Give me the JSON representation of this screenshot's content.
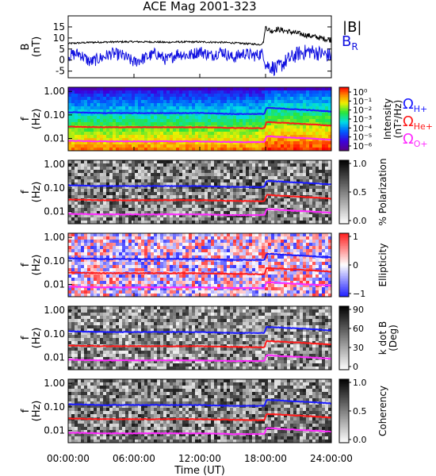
{
  "title": "ACE Mag 2001-323",
  "xaxis": {
    "ticks": [
      "00:00:00",
      "06:00:00",
      "12:00:00",
      "18:00:00",
      "24:00:00"
    ],
    "label": "Time (UT)"
  },
  "colors": {
    "btotal": "#000000",
    "br": "#1010e0",
    "h_plus": "#1a1aff",
    "he_plus": "#ff1a1a",
    "o_plus": "#ff2aff"
  },
  "chart_data": [
    {
      "type": "line",
      "panel": "magnetic-field",
      "ylabel": [
        "B",
        "(nT)"
      ],
      "yticks": [
        "15",
        "10",
        "5",
        "0",
        "-5"
      ],
      "ylim": [
        -8,
        20
      ],
      "xlim_hours": [
        0,
        24
      ],
      "legend": [
        {
          "name": "|B|",
          "color": "#000000"
        },
        {
          "name": "B",
          "sub": "R",
          "color": "#1010e0"
        }
      ],
      "series": [
        {
          "name": "|B|",
          "x": [
            0,
            2,
            4,
            6,
            8,
            9,
            10,
            12,
            14,
            15,
            16,
            17,
            17.5,
            17.8,
            18,
            18.5,
            19,
            20,
            21,
            22,
            23,
            24
          ],
          "y": [
            7.5,
            8,
            8.2,
            8.3,
            8.2,
            8.0,
            8.2,
            8.2,
            8.0,
            7.8,
            7.5,
            7.2,
            7.0,
            8,
            15,
            13,
            14,
            13,
            12,
            11,
            10,
            9
          ]
        },
        {
          "name": "B_R",
          "x": [
            0,
            1,
            2,
            3,
            4,
            5,
            6,
            7,
            8,
            9,
            10,
            11,
            12,
            13,
            14,
            15,
            16,
            17,
            17.8,
            18,
            19,
            20,
            21,
            22,
            23,
            24
          ],
          "y": [
            2,
            3,
            -1,
            1,
            3,
            2,
            -1,
            1,
            3,
            0,
            3,
            2,
            4,
            2,
            4,
            1,
            3,
            2,
            3,
            -2,
            -4,
            0,
            3,
            4,
            3,
            2
          ]
        }
      ]
    },
    {
      "type": "heatmap",
      "panel": "intensity",
      "ylabel": [
        "f",
        "(Hz)"
      ],
      "yticks": [
        "1.00",
        "0.10",
        "0.01"
      ],
      "ylim_hz": [
        0.003,
        1.5
      ],
      "colorbar": {
        "label": "Intensity",
        "label2": "(nT²/Hz)",
        "ticks": [
          "10⁰",
          "10⁻¹",
          "10⁻²",
          "10⁻³",
          "10⁻⁴",
          "10⁻⁵",
          "10⁻⁶"
        ],
        "range": [
          -6.5,
          0.5
        ]
      },
      "legend": [
        {
          "name": "Ω",
          "sub": "H+",
          "color": "#1a1aff"
        },
        {
          "name": "Ω",
          "sub": "He+",
          "color": "#ff1a1a"
        },
        {
          "name": "Ω",
          "sub": "O+",
          "color": "#ff2aff"
        }
      ]
    },
    {
      "type": "heatmap",
      "panel": "polarization",
      "ylabel": [
        "f",
        "(Hz)"
      ],
      "yticks": [
        "1.00",
        "0.10",
        "0.01"
      ],
      "colorbar": {
        "label": "% Polarization",
        "ticks": [
          "1.0",
          "0.5",
          "0.0"
        ],
        "range": [
          0,
          1
        ]
      }
    },
    {
      "type": "heatmap",
      "panel": "ellipticity",
      "ylabel": [
        "f",
        "(Hz)"
      ],
      "yticks": [
        "1.00",
        "0.10",
        "0.01"
      ],
      "colorbar": {
        "label": "Ellipticity",
        "ticks": [
          "1",
          "0",
          "−1"
        ],
        "range": [
          -1,
          1
        ]
      }
    },
    {
      "type": "heatmap",
      "panel": "k-dot-b",
      "ylabel": [
        "f",
        "(Hz)"
      ],
      "yticks": [
        "1.00",
        "0.10",
        "0.01"
      ],
      "colorbar": {
        "label": "k dot B",
        "label2": "(Deg)",
        "ticks": [
          "90",
          "60",
          "30",
          "0"
        ],
        "range": [
          0,
          90
        ]
      }
    },
    {
      "type": "heatmap",
      "panel": "coherency",
      "ylabel": [
        "f",
        "(Hz)"
      ],
      "yticks": [
        "1.00",
        "0.10",
        "0.01"
      ],
      "colorbar": {
        "label": "Coherency",
        "ticks": [
          "1.0",
          "0.5",
          "0.0"
        ],
        "range": [
          0,
          1
        ]
      }
    }
  ],
  "gyrofrequencies_hz": {
    "x_hours": [
      0,
      3,
      6,
      9,
      12,
      15,
      17.9,
      18.1,
      20,
      22,
      24
    ],
    "h_plus": [
      0.13,
      0.12,
      0.12,
      0.12,
      0.12,
      0.11,
      0.11,
      0.2,
      0.18,
      0.16,
      0.14
    ],
    "he_plus": [
      0.032,
      0.03,
      0.03,
      0.03,
      0.03,
      0.028,
      0.027,
      0.05,
      0.045,
      0.04,
      0.035
    ],
    "o_plus": [
      0.008,
      0.0075,
      0.0075,
      0.0075,
      0.0075,
      0.007,
      0.007,
      0.0125,
      0.011,
      0.01,
      0.0088
    ]
  }
}
